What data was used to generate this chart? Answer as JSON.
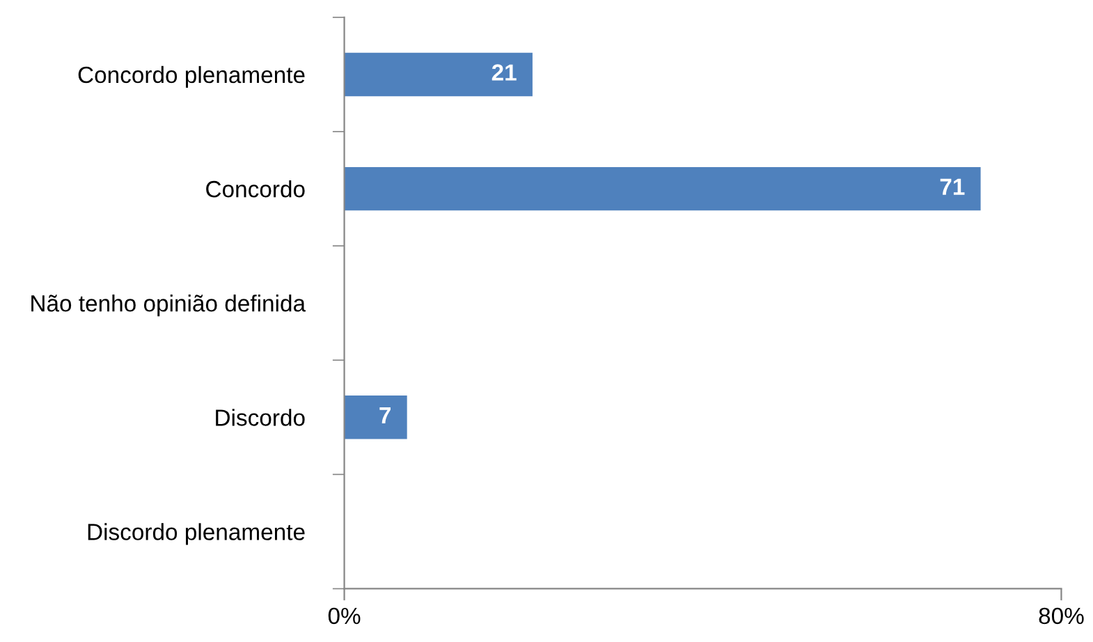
{
  "chart_data": {
    "type": "bar",
    "orientation": "horizontal",
    "categories": [
      "Concordo plenamente",
      "Concordo",
      "Não tenho opinião definida",
      "Discordo",
      "Discordo plenamente"
    ],
    "values": [
      21,
      71,
      null,
      7,
      null
    ],
    "color": "#4f81bd",
    "data_labels": true,
    "xlim": [
      0,
      80
    ],
    "xticks": [
      {
        "value": 0,
        "label": "0%"
      },
      {
        "value": 80,
        "label": "80%"
      }
    ],
    "grid": false
  }
}
